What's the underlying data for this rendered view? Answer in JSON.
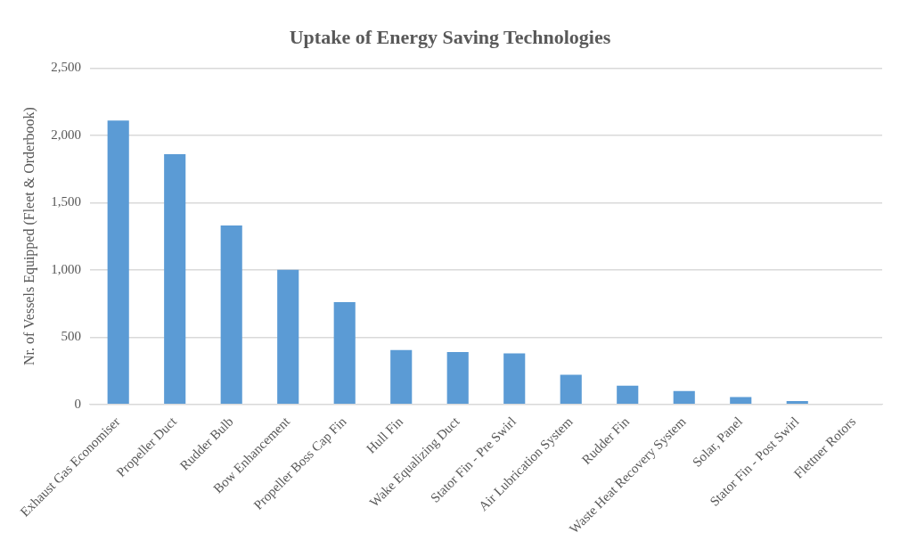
{
  "chart_data": {
    "type": "bar",
    "title": "Uptake of Energy Saving Technologies",
    "ylabel": "Nr. of Vessels Equipped (Fleet & Orderbook)",
    "categories": [
      "Exhaust Gas Economiser",
      "Propeller Duct",
      "Rudder Bulb",
      "Bow Enhancement",
      "Propeller Boss Cap Fin",
      "Hull Fin",
      "Wake Equalizing Duct",
      "Stator Fin - Pre Swirl",
      "Air Lubrication System",
      "Rudder Fin",
      "Waste Heat Recovery System",
      "Solar, Panel",
      "Stator Fin - Post Swirl",
      "Flettner Rotors"
    ],
    "values": [
      2110,
      1860,
      1330,
      1000,
      760,
      405,
      390,
      380,
      220,
      140,
      100,
      55,
      25,
      0
    ],
    "color": "#5b9bd5",
    "ylim": [
      0,
      2500
    ],
    "yticks": [
      {
        "value": 0,
        "label": "0"
      },
      {
        "value": 500,
        "label": "500"
      },
      {
        "value": 1000,
        "label": "1,000"
      },
      {
        "value": 1500,
        "label": "1,500"
      },
      {
        "value": 2000,
        "label": "2,000"
      },
      {
        "value": 2500,
        "label": "2,500"
      }
    ],
    "grid": "y",
    "legend": false
  }
}
